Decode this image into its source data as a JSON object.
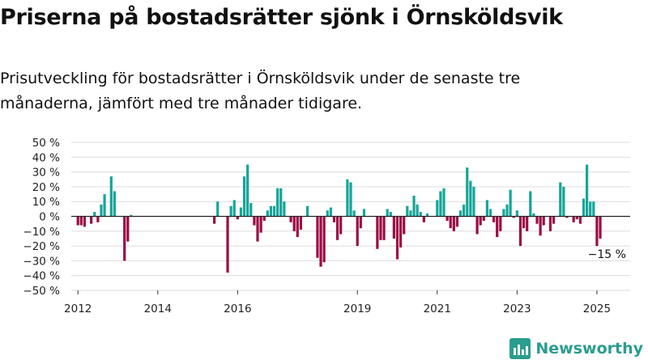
{
  "header": {
    "title": "Priserna på bostadsrätter sjönk i Örnsköldsvik",
    "subtitle": "Prisutveckling för bostadsrätter i Örnsköldsvik under de senaste tre månaderna, jämfört med tre månader tidigare."
  },
  "brand": {
    "name": "Newsworthy",
    "color": "#2a9d8f",
    "logo_icon": "bar-chart-logo-icon"
  },
  "colors": {
    "positive": "#15a599",
    "negative": "#9b0b45",
    "grid": "#dcdcdc",
    "zero_line": "#222222"
  },
  "chart_data": {
    "type": "bar",
    "title": "",
    "xlabel": "",
    "ylabel": "",
    "ylim": [
      -50,
      50
    ],
    "y_ticks": [
      50,
      40,
      30,
      20,
      10,
      0,
      -10,
      -20,
      -30,
      -40,
      -50
    ],
    "y_tick_labels": [
      "50 %",
      "40 %",
      "30 %",
      "20 %",
      "10 %",
      "0 %",
      "−10 %",
      "−20 %",
      "−30 %",
      "−40 %",
      "−50 %"
    ],
    "x_tick_labels": [
      "2012",
      "2014",
      "2016",
      "2019",
      "2021",
      "2023",
      "2025"
    ],
    "x_tick_positions": [
      "2012-01",
      "2014-01",
      "2016-01",
      "2019-01",
      "2021-01",
      "2023-01",
      "2025-01"
    ],
    "grid": true,
    "legend": "none",
    "annotation": {
      "text": "−15 %",
      "x": "2025-04",
      "value": -15
    },
    "series": [
      {
        "values": [
          {
            "x": "2012-01",
            "y": -6
          },
          {
            "x": "2012-02",
            "y": -6
          },
          {
            "x": "2012-03",
            "y": -7
          },
          {
            "x": "2012-04",
            "y": 0
          },
          {
            "x": "2012-05",
            "y": -5
          },
          {
            "x": "2012-06",
            "y": 3
          },
          {
            "x": "2012-07",
            "y": -4
          },
          {
            "x": "2012-08",
            "y": 8
          },
          {
            "x": "2012-09",
            "y": 15
          },
          {
            "x": "2012-10",
            "y": 0
          },
          {
            "x": "2012-11",
            "y": 27
          },
          {
            "x": "2012-12",
            "y": 17
          },
          {
            "x": "2013-01",
            "y": 0
          },
          {
            "x": "2013-02",
            "y": 0
          },
          {
            "x": "2013-03",
            "y": -30
          },
          {
            "x": "2013-04",
            "y": -17
          },
          {
            "x": "2013-05",
            "y": 1
          },
          {
            "x": "2015-06",
            "y": -5
          },
          {
            "x": "2015-07",
            "y": 10
          },
          {
            "x": "2015-10",
            "y": -38
          },
          {
            "x": "2015-11",
            "y": 7
          },
          {
            "x": "2015-12",
            "y": 11
          },
          {
            "x": "2016-01",
            "y": -2
          },
          {
            "x": "2016-02",
            "y": 6
          },
          {
            "x": "2016-03",
            "y": 27
          },
          {
            "x": "2016-04",
            "y": 35
          },
          {
            "x": "2016-05",
            "y": 9
          },
          {
            "x": "2016-06",
            "y": -6
          },
          {
            "x": "2016-07",
            "y": -17
          },
          {
            "x": "2016-08",
            "y": -11
          },
          {
            "x": "2016-09",
            "y": -3
          },
          {
            "x": "2016-10",
            "y": 4
          },
          {
            "x": "2016-11",
            "y": 7
          },
          {
            "x": "2016-12",
            "y": 7
          },
          {
            "x": "2017-01",
            "y": 19
          },
          {
            "x": "2017-02",
            "y": 19
          },
          {
            "x": "2017-03",
            "y": 10
          },
          {
            "x": "2017-04",
            "y": 0
          },
          {
            "x": "2017-05",
            "y": -4
          },
          {
            "x": "2017-06",
            "y": -10
          },
          {
            "x": "2017-07",
            "y": -14
          },
          {
            "x": "2017-08",
            "y": -9
          },
          {
            "x": "2017-09",
            "y": 0
          },
          {
            "x": "2017-10",
            "y": 7
          },
          {
            "x": "2018-01",
            "y": -28
          },
          {
            "x": "2018-02",
            "y": -34
          },
          {
            "x": "2018-03",
            "y": -31
          },
          {
            "x": "2018-04",
            "y": 4
          },
          {
            "x": "2018-05",
            "y": 6
          },
          {
            "x": "2018-06",
            "y": -4
          },
          {
            "x": "2018-07",
            "y": -16
          },
          {
            "x": "2018-08",
            "y": -12
          },
          {
            "x": "2018-09",
            "y": 0
          },
          {
            "x": "2018-10",
            "y": 25
          },
          {
            "x": "2018-11",
            "y": 23
          },
          {
            "x": "2018-12",
            "y": 4
          },
          {
            "x": "2019-01",
            "y": -20
          },
          {
            "x": "2019-02",
            "y": -8
          },
          {
            "x": "2019-03",
            "y": 5
          },
          {
            "x": "2019-04",
            "y": 0
          },
          {
            "x": "2019-05",
            "y": 0
          },
          {
            "x": "2019-06",
            "y": 0
          },
          {
            "x": "2019-07",
            "y": -22
          },
          {
            "x": "2019-08",
            "y": -16
          },
          {
            "x": "2019-09",
            "y": -16
          },
          {
            "x": "2019-10",
            "y": 5
          },
          {
            "x": "2019-11",
            "y": 3
          },
          {
            "x": "2019-12",
            "y": -15
          },
          {
            "x": "2020-01",
            "y": -29
          },
          {
            "x": "2020-02",
            "y": -21
          },
          {
            "x": "2020-03",
            "y": -12
          },
          {
            "x": "2020-04",
            "y": 7
          },
          {
            "x": "2020-05",
            "y": 4
          },
          {
            "x": "2020-06",
            "y": 14
          },
          {
            "x": "2020-07",
            "y": 8
          },
          {
            "x": "2020-08",
            "y": 3
          },
          {
            "x": "2020-09",
            "y": -4
          },
          {
            "x": "2020-10",
            "y": 2
          },
          {
            "x": "2020-11",
            "y": 0
          },
          {
            "x": "2020-12",
            "y": 0
          },
          {
            "x": "2021-01",
            "y": 11
          },
          {
            "x": "2021-02",
            "y": 17
          },
          {
            "x": "2021-03",
            "y": 19
          },
          {
            "x": "2021-04",
            "y": -3
          },
          {
            "x": "2021-05",
            "y": -8
          },
          {
            "x": "2021-06",
            "y": -10
          },
          {
            "x": "2021-07",
            "y": -7
          },
          {
            "x": "2021-08",
            "y": 4
          },
          {
            "x": "2021-09",
            "y": 8
          },
          {
            "x": "2021-10",
            "y": 33
          },
          {
            "x": "2021-11",
            "y": 24
          },
          {
            "x": "2021-12",
            "y": 20
          },
          {
            "x": "2022-01",
            "y": -12
          },
          {
            "x": "2022-02",
            "y": -6
          },
          {
            "x": "2022-03",
            "y": -3
          },
          {
            "x": "2022-04",
            "y": 11
          },
          {
            "x": "2022-05",
            "y": 5
          },
          {
            "x": "2022-06",
            "y": -4
          },
          {
            "x": "2022-07",
            "y": -14
          },
          {
            "x": "2022-08",
            "y": -10
          },
          {
            "x": "2022-09",
            "y": 5
          },
          {
            "x": "2022-10",
            "y": 8
          },
          {
            "x": "2022-11",
            "y": 18
          },
          {
            "x": "2022-12",
            "y": -1
          },
          {
            "x": "2023-01",
            "y": 4
          },
          {
            "x": "2023-02",
            "y": -20
          },
          {
            "x": "2023-03",
            "y": -8
          },
          {
            "x": "2023-04",
            "y": -10
          },
          {
            "x": "2023-05",
            "y": 17
          },
          {
            "x": "2023-06",
            "y": 2
          },
          {
            "x": "2023-07",
            "y": -5
          },
          {
            "x": "2023-08",
            "y": -13
          },
          {
            "x": "2023-09",
            "y": -6
          },
          {
            "x": "2023-10",
            "y": 0
          },
          {
            "x": "2023-11",
            "y": -10
          },
          {
            "x": "2023-12",
            "y": -5
          },
          {
            "x": "2024-01",
            "y": 0
          },
          {
            "x": "2024-02",
            "y": 23
          },
          {
            "x": "2024-03",
            "y": 20
          },
          {
            "x": "2024-04",
            "y": -1
          },
          {
            "x": "2024-05",
            "y": 0
          },
          {
            "x": "2024-06",
            "y": -4
          },
          {
            "x": "2024-07",
            "y": -2
          },
          {
            "x": "2024-08",
            "y": -5
          },
          {
            "x": "2024-09",
            "y": 12
          },
          {
            "x": "2024-10",
            "y": 35
          },
          {
            "x": "2024-11",
            "y": 10
          },
          {
            "x": "2024-12",
            "y": 10
          },
          {
            "x": "2025-01",
            "y": -20
          },
          {
            "x": "2025-02",
            "y": -15
          }
        ]
      }
    ]
  }
}
